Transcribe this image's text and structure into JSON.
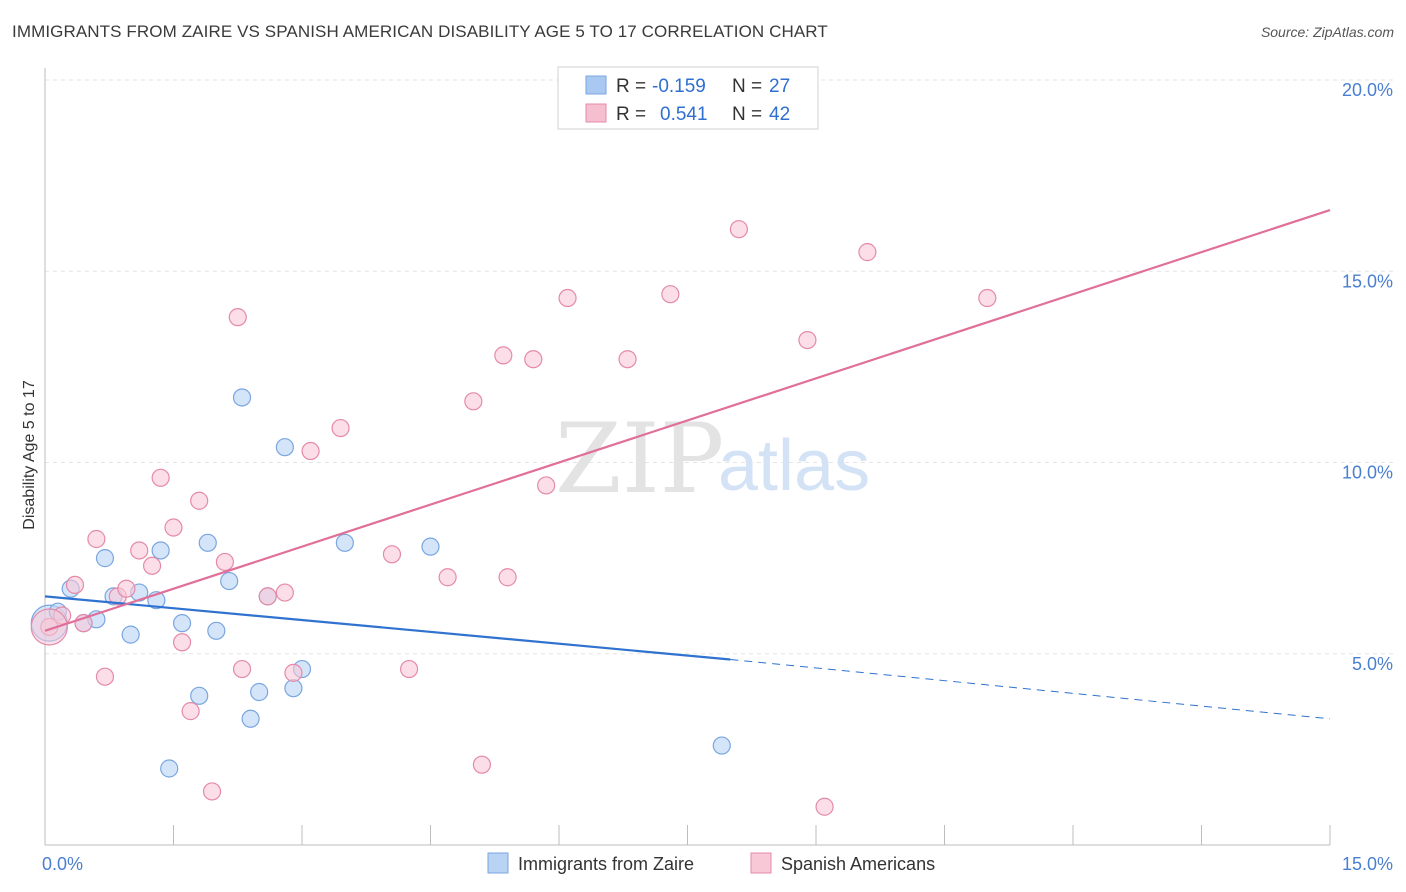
{
  "title": "IMMIGRANTS FROM ZAIRE VS SPANISH AMERICAN DISABILITY AGE 5 TO 17 CORRELATION CHART",
  "source": "Source: ZipAtlas.com",
  "watermark": {
    "zip": "ZIP",
    "atlas": "atlas"
  },
  "legend": {
    "rows": [
      {
        "r_label": "R =",
        "r_value": "-0.159",
        "n_label": "N =",
        "n_value": "27",
        "color": "#a9c8f2",
        "stroke": "#7aa6e0"
      },
      {
        "r_label": "R =",
        "r_value": "0.541",
        "n_label": "N =",
        "n_value": "42",
        "color": "#f6bfd0",
        "stroke": "#e58aa8"
      }
    ]
  },
  "bottom_legend": [
    {
      "label": "Immigrants from Zaire",
      "color": "#b9d3f5",
      "stroke": "#7aa6e0"
    },
    {
      "label": "Spanish Americans",
      "color": "#f8c8d7",
      "stroke": "#e58aa8"
    }
  ],
  "chart_data": {
    "type": "scatter",
    "title": "IMMIGRANTS FROM ZAIRE VS SPANISH AMERICAN DISABILITY AGE 5 TO 17 CORRELATION CHART",
    "xlabel": "",
    "ylabel": "Disability Age 5 to 17",
    "xlim": [
      0,
      15
    ],
    "ylim": [
      0,
      20
    ],
    "x_tick_labels": [
      "0.0%",
      "15.0%"
    ],
    "y_ticks": [
      5,
      10,
      15,
      20
    ],
    "y_tick_labels": [
      "5.0%",
      "10.0%",
      "15.0%",
      "20.0%"
    ],
    "grid": true,
    "series": [
      {
        "name": "Immigrants from Zaire",
        "color": "#7aa6e0",
        "fill": "#b9d3f5",
        "points": [
          [
            0.05,
            5.8
          ],
          [
            0.15,
            6.1
          ],
          [
            0.3,
            6.7
          ],
          [
            0.45,
            5.8
          ],
          [
            0.6,
            5.9
          ],
          [
            0.7,
            7.5
          ],
          [
            0.8,
            6.5
          ],
          [
            1.0,
            5.5
          ],
          [
            1.1,
            6.6
          ],
          [
            1.3,
            6.4
          ],
          [
            1.35,
            7.7
          ],
          [
            1.45,
            2.0
          ],
          [
            1.6,
            5.8
          ],
          [
            1.8,
            3.9
          ],
          [
            1.9,
            7.9
          ],
          [
            2.0,
            5.6
          ],
          [
            2.15,
            6.9
          ],
          [
            2.3,
            11.7
          ],
          [
            2.4,
            3.3
          ],
          [
            2.5,
            4.0
          ],
          [
            2.6,
            6.5
          ],
          [
            2.8,
            10.4
          ],
          [
            2.9,
            4.1
          ],
          [
            3.0,
            4.6
          ],
          [
            3.5,
            7.9
          ],
          [
            4.5,
            7.8
          ],
          [
            7.9,
            2.6
          ]
        ],
        "trend": {
          "x0": 0,
          "y0": 6.5,
          "x1": 8.0,
          "y1": 4.85,
          "dash_to_x": 15,
          "dash_to_y": 3.3
        }
      },
      {
        "name": "Spanish Americans",
        "color": "#e58aa8",
        "fill": "#f8c8d7",
        "points": [
          [
            0.05,
            5.7
          ],
          [
            0.2,
            6.0
          ],
          [
            0.35,
            6.8
          ],
          [
            0.45,
            5.8
          ],
          [
            0.6,
            8.0
          ],
          [
            0.7,
            4.4
          ],
          [
            0.85,
            6.5
          ],
          [
            0.95,
            6.7
          ],
          [
            1.1,
            7.7
          ],
          [
            1.25,
            7.3
          ],
          [
            1.35,
            9.6
          ],
          [
            1.5,
            8.3
          ],
          [
            1.6,
            5.3
          ],
          [
            1.7,
            3.5
          ],
          [
            1.8,
            9.0
          ],
          [
            1.95,
            1.4
          ],
          [
            2.1,
            7.4
          ],
          [
            2.25,
            13.8
          ],
          [
            2.3,
            4.6
          ],
          [
            2.6,
            6.5
          ],
          [
            2.8,
            6.6
          ],
          [
            2.9,
            4.5
          ],
          [
            3.1,
            10.3
          ],
          [
            3.45,
            10.9
          ],
          [
            4.05,
            7.6
          ],
          [
            4.25,
            4.6
          ],
          [
            4.7,
            7.0
          ],
          [
            5.0,
            11.6
          ],
          [
            5.1,
            2.1
          ],
          [
            5.35,
            12.8
          ],
          [
            5.4,
            7.0
          ],
          [
            5.7,
            12.7
          ],
          [
            5.85,
            9.4
          ],
          [
            6.1,
            14.3
          ],
          [
            6.8,
            12.7
          ],
          [
            7.3,
            14.4
          ],
          [
            8.1,
            16.1
          ],
          [
            8.9,
            13.2
          ],
          [
            9.1,
            1.0
          ],
          [
            9.6,
            15.5
          ],
          [
            11.0,
            14.3
          ],
          [
            0.05,
            5.7
          ]
        ],
        "trend": {
          "x0": 0,
          "y0": 5.6,
          "x1": 15,
          "y1": 16.6
        }
      }
    ]
  }
}
